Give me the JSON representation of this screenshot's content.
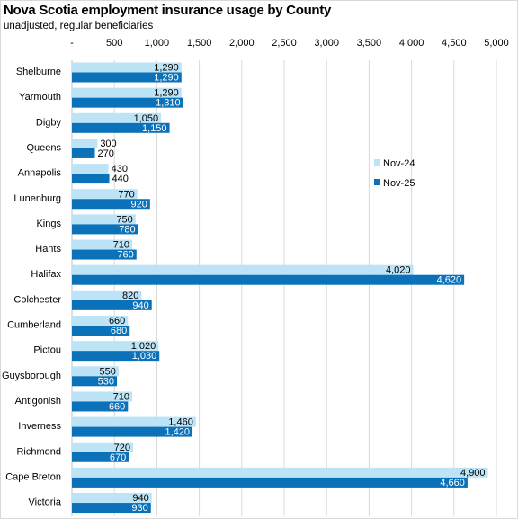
{
  "title": "Nova Scotia employment insurance usage by County",
  "subtitle": "unadjusted, regular beneficiaries",
  "colors": {
    "nov24": "#bde3f7",
    "nov25": "#0b71b8",
    "gridline": "#d9d9d9"
  },
  "chart_data": {
    "type": "bar",
    "orientation": "horizontal",
    "title": "Nova Scotia employment insurance usage by County",
    "subtitle": "unadjusted, regular beneficiaries",
    "xlabel": "",
    "ylabel": "",
    "xlim": [
      0,
      5000
    ],
    "x_ticks": [
      0,
      500,
      1000,
      1500,
      2000,
      2500,
      3000,
      3500,
      4000,
      4500,
      5000
    ],
    "x_tick_labels": [
      "-",
      "500",
      "1,000",
      "1,500",
      "2,000",
      "2,500",
      "3,000",
      "3,500",
      "4,000",
      "4,500",
      "5,000"
    ],
    "axis_position": "top",
    "grid": true,
    "legend_position": "right",
    "categories": [
      "Shelburne",
      "Yarmouth",
      "Digby",
      "Queens",
      "Annapolis",
      "Lunenburg",
      "Kings",
      "Hants",
      "Halifax",
      "Colchester",
      "Cumberland",
      "Pictou",
      "Guysborough",
      "Antigonish",
      "Inverness",
      "Richmond",
      "Cape Breton",
      "Victoria"
    ],
    "series": [
      {
        "name": "Nov-24",
        "color": "#bde3f7",
        "values": [
          1290,
          1290,
          1050,
          300,
          430,
          770,
          750,
          710,
          4020,
          820,
          660,
          1020,
          550,
          710,
          1460,
          720,
          4900,
          940
        ],
        "labels": [
          "1,290",
          "1,290",
          "1,050",
          "300",
          "430",
          "770",
          "750",
          "710",
          "4,020",
          "820",
          "660",
          "1,020",
          "550",
          "710",
          "1,460",
          "720",
          "4,900",
          "940"
        ]
      },
      {
        "name": "Nov-25",
        "color": "#0b71b8",
        "values": [
          1290,
          1310,
          1150,
          270,
          440,
          920,
          780,
          760,
          4620,
          940,
          680,
          1030,
          530,
          660,
          1420,
          670,
          4660,
          930
        ],
        "labels": [
          "1,290",
          "1,310",
          "1,150",
          "270",
          "440",
          "920",
          "780",
          "760",
          "4,620",
          "940",
          "680",
          "1,030",
          "530",
          "660",
          "1,420",
          "670",
          "4,660",
          "930"
        ]
      }
    ]
  }
}
